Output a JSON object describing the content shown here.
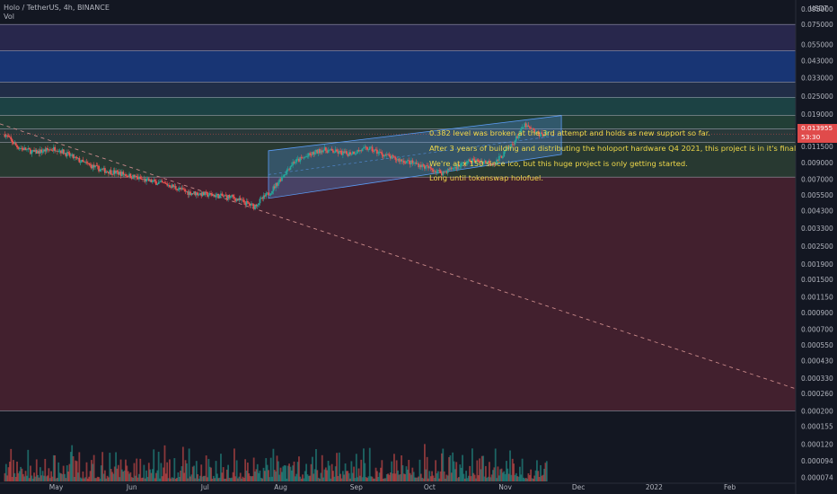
{
  "header": {
    "symbol_line": "Holo / TetherUS, 4h, BINANCE",
    "volume_label": "Vol"
  },
  "axis": {
    "currency": "USDT",
    "price_ticks": [
      "0.095000",
      "0.075000",
      "0.055000",
      "0.043000",
      "0.033000",
      "0.025000",
      "0.019000",
      "0.015000",
      "0.011500",
      "0.009000",
      "0.007000",
      "0.005500",
      "0.004300",
      "0.003300",
      "0.002500",
      "0.001900",
      "0.001500",
      "0.001150",
      "0.000900",
      "0.000700",
      "0.000550",
      "0.000430",
      "0.000330",
      "0.000260",
      "0.000200"
    ],
    "volume_ticks": [
      "0.000155",
      "0.000120",
      "0.000094",
      "0.000074"
    ],
    "time_ticks": [
      "May",
      "Jun",
      "Jul",
      "Aug",
      "Sep",
      "Oct",
      "Nov",
      "Dec",
      "2022",
      "Feb"
    ]
  },
  "price_tag": {
    "price": "0.013955",
    "countdown": "53:30"
  },
  "annotations": [
    "0.382 level was broken at the 3rd attempt and holds as new support so far.",
    "After 3 years of building and distributing the holoport hardware Q4 2021, this project is in it's final",
    "We're at x 150 since ico, but this huge project is only getting started.",
    "Long until tokenswap holofuel."
  ],
  "colors": {
    "background": "#131722",
    "candle_up": "#26a69a",
    "candle_down": "#ef5350",
    "channel": "#5b9cf6",
    "annotation": "#f0d94a",
    "price_tag": "#e04b4b"
  },
  "chart_data": {
    "type": "candlestick",
    "y_scale": "log",
    "ylim": [
      0.00019,
      0.095
    ],
    "x_range": [
      "2021-04-08",
      "2022-02-28"
    ],
    "price_path": [
      {
        "date": "2021-04-10",
        "price": 0.0139
      },
      {
        "date": "2021-04-15",
        "price": 0.0115
      },
      {
        "date": "2021-04-22",
        "price": 0.0105
      },
      {
        "date": "2021-05-01",
        "price": 0.0112
      },
      {
        "date": "2021-05-12",
        "price": 0.009
      },
      {
        "date": "2021-05-20",
        "price": 0.008
      },
      {
        "date": "2021-05-28",
        "price": 0.0076
      },
      {
        "date": "2021-06-06",
        "price": 0.0069
      },
      {
        "date": "2021-06-16",
        "price": 0.0064
      },
      {
        "date": "2021-06-24",
        "price": 0.0057
      },
      {
        "date": "2021-07-02",
        "price": 0.0055
      },
      {
        "date": "2021-07-12",
        "price": 0.0053
      },
      {
        "date": "2021-07-21",
        "price": 0.0046
      },
      {
        "date": "2021-07-28",
        "price": 0.0058
      },
      {
        "date": "2021-08-06",
        "price": 0.009
      },
      {
        "date": "2021-08-18",
        "price": 0.011
      },
      {
        "date": "2021-08-28",
        "price": 0.0103
      },
      {
        "date": "2021-09-06",
        "price": 0.0112
      },
      {
        "date": "2021-09-16",
        "price": 0.0096
      },
      {
        "date": "2021-09-26",
        "price": 0.0088
      },
      {
        "date": "2021-10-06",
        "price": 0.0077
      },
      {
        "date": "2021-10-18",
        "price": 0.0093
      },
      {
        "date": "2021-10-28",
        "price": 0.009
      },
      {
        "date": "2021-11-04",
        "price": 0.012
      },
      {
        "date": "2021-11-09",
        "price": 0.016
      },
      {
        "date": "2021-11-14",
        "price": 0.014
      },
      {
        "date": "2021-11-18",
        "price": 0.0139
      }
    ],
    "last_price": 0.013955,
    "horizontal_levels": [
      0.075,
      0.05,
      0.031,
      0.0245,
      0.0186,
      0.0151,
      0.0123,
      0.0072,
      0.0002
    ],
    "level_bands": [
      {
        "from": 0.05,
        "to": 0.075,
        "color": "#2d2a54"
      },
      {
        "from": 0.031,
        "to": 0.05,
        "color": "#1a3b82"
      },
      {
        "from": 0.0245,
        "to": 0.031,
        "color": "#25334f"
      },
      {
        "from": 0.0186,
        "to": 0.0245,
        "color": "#1f4a4a"
      },
      {
        "from": 0.0151,
        "to": 0.0186,
        "color": "#26473a"
      },
      {
        "from": 0.0123,
        "to": 0.0151,
        "color": "#2e3f3e"
      },
      {
        "from": 0.0072,
        "to": 0.0123,
        "color": "#2d4034"
      },
      {
        "from": 0.0002,
        "to": 0.0072,
        "color": "#4b2230"
      }
    ],
    "channel": {
      "start": "2021-07-27",
      "end": "2021-11-24",
      "lower_start": 0.0052,
      "lower_end": 0.0102,
      "upper_start": 0.0108,
      "upper_end": 0.0185
    },
    "trendline": {
      "start_date": "2021-04-08",
      "start_price": 0.0163,
      "end_date": "2022-02-28",
      "end_price": 0.00028
    },
    "volume_ylim": [
      7e-05,
      0.00018
    ]
  }
}
